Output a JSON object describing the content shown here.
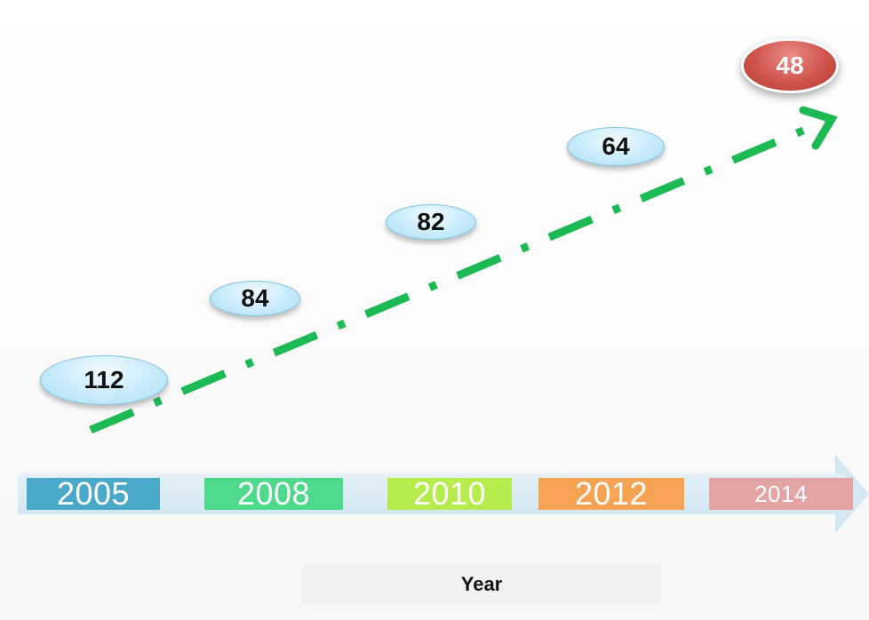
{
  "diagram": {
    "axis_label": "Year",
    "trend_color": "#1db954",
    "years": [
      {
        "label": "2005",
        "color": "#4aa9c8"
      },
      {
        "label": "2008",
        "color": "#4fd98c"
      },
      {
        "label": "2010",
        "color": "#b6ec4c"
      },
      {
        "label": "2012",
        "color": "#f6a353"
      },
      {
        "label": "2014",
        "color": "#e3a4a4"
      }
    ],
    "values": [
      {
        "label": "112",
        "highlight": false
      },
      {
        "label": "84",
        "highlight": false
      },
      {
        "label": "82",
        "highlight": false
      },
      {
        "label": "64",
        "highlight": false
      },
      {
        "label": "48",
        "highlight": true,
        "color": "#c84a42"
      }
    ]
  }
}
